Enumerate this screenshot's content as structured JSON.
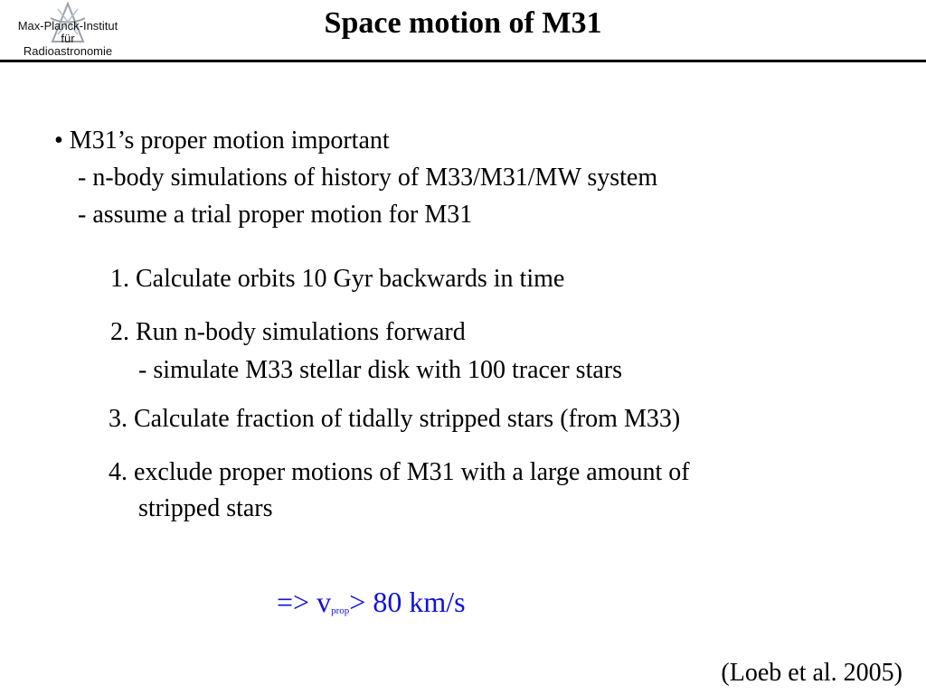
{
  "header": {
    "logo": {
      "icon": "mpifr-logo-icon",
      "lines": [
        "Max-Planck-Institut",
        "für",
        "Radioastronomie"
      ]
    },
    "title": "Space motion of M31"
  },
  "body": {
    "bullet": "• M31’s proper motion important",
    "sub_points": [
      "- n-body simulations of history of M33/M31/MW system",
      "- assume a trial proper motion for M31"
    ],
    "steps": [
      "1. Calculate orbits 10 Gyr backwards in time",
      "2. Run n-body simulations forward",
      "- simulate M33 stellar disk with 100 tracer stars",
      "3. Calculate fraction of tidally stripped stars (from M33)",
      "4. exclude proper motions of M31 with a large amount of",
      "stripped stars"
    ]
  },
  "result": {
    "prefix": "=> v",
    "subscript": "prop",
    "suffix": "> 80 km/s",
    "color": "#1010e0"
  },
  "reference": "(Loeb et al. 2005)"
}
